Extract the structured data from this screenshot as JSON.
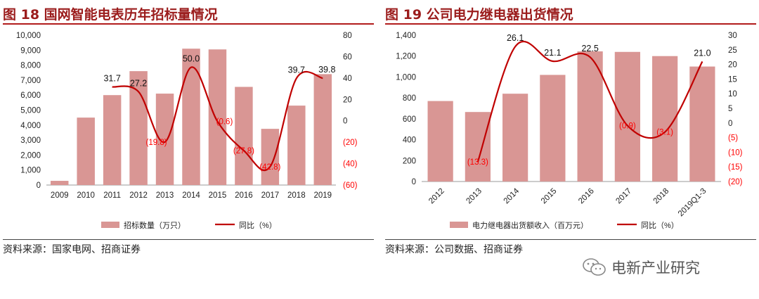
{
  "figures": [
    {
      "title": "图 18 国网智能电表历年招标量情况",
      "source": "资料来源：国家电网、招商证券"
    },
    {
      "title": "图 19 公司电力继电器出货情况",
      "source": "资料来源：公司数据、招商证券"
    }
  ],
  "watermark": {
    "text": "电新产业研究",
    "icon": "wechat-icon"
  },
  "colors": {
    "bar": "#d99694",
    "line": "#c00000",
    "neg_label": "#ff0000",
    "title": "#9b1c1c",
    "rule": "#b21c1c"
  },
  "chart_data": [
    {
      "type": "bar",
      "title": "图 18 国网智能电表历年招标量情况",
      "categories": [
        "2009",
        "2010",
        "2011",
        "2012",
        "2013",
        "2014",
        "2015",
        "2016",
        "2017",
        "2018",
        "2019"
      ],
      "series": [
        {
          "name": "招标数量（万只）",
          "type": "bar",
          "axis": "left",
          "values": [
            280,
            4500,
            6000,
            7600,
            6100,
            9100,
            9050,
            6550,
            3750,
            5300,
            7400
          ]
        },
        {
          "name": "同比（%）",
          "type": "line",
          "axis": "right",
          "values": [
            null,
            null,
            31.7,
            27.2,
            -19.8,
            50.0,
            -0.6,
            -27.8,
            -42.8,
            39.7,
            39.8
          ]
        }
      ],
      "data_labels": [
        "",
        "",
        "31.7",
        "27.2",
        "(19.8)",
        "50.0",
        "(0.6)",
        "(27.8)",
        "(42.8)",
        "39.7",
        "39.8"
      ],
      "y_left": {
        "ylim": [
          0,
          10000
        ],
        "ticks": [
          "0",
          "1,000",
          "2,000",
          "3,000",
          "4,000",
          "5,000",
          "6,000",
          "7,000",
          "8,000",
          "9,000",
          "10,000"
        ]
      },
      "y_right": {
        "ylim": [
          -60,
          80
        ],
        "ticks": [
          "(60)",
          "(40)",
          "(20)",
          "0",
          "20",
          "40",
          "60",
          "80"
        ]
      },
      "legend": {
        "position": "bottom",
        "labels": [
          "招标数量（万只）",
          "同比（%）"
        ]
      },
      "grid": false
    },
    {
      "type": "bar",
      "title": "图 19 公司电力继电器出货情况",
      "categories": [
        "2012",
        "2013",
        "2014",
        "2015",
        "2016",
        "2017",
        "2018",
        "2019Q1-3"
      ],
      "series": [
        {
          "name": "电力继电器出货额收入（百万元）",
          "type": "bar",
          "axis": "left",
          "values": [
            770,
            665,
            840,
            1020,
            1245,
            1240,
            1200,
            1100
          ]
        },
        {
          "name": "同比（%）",
          "type": "line",
          "axis": "right",
          "values": [
            null,
            -13.3,
            26.1,
            21.1,
            22.5,
            -0.9,
            -3.1,
            21.0
          ]
        }
      ],
      "data_labels": [
        "",
        "(13.3)",
        "26.1",
        "21.1",
        "22.5",
        "(0.9)",
        "(3.1)",
        "21.0"
      ],
      "y_left": {
        "ylim": [
          0,
          1400
        ],
        "ticks": [
          "0",
          "200",
          "400",
          "600",
          "800",
          "1,000",
          "1,200",
          "1,400"
        ]
      },
      "y_right": {
        "ylim": [
          -20,
          30
        ],
        "ticks": [
          "(20)",
          "(15)",
          "(10)",
          "(5)",
          "0",
          "5",
          "10",
          "15",
          "20",
          "25",
          "30"
        ]
      },
      "legend": {
        "position": "bottom",
        "labels": [
          "电力继电器出货额收入（百万元）",
          "同比（%）"
        ]
      },
      "grid": false
    }
  ]
}
